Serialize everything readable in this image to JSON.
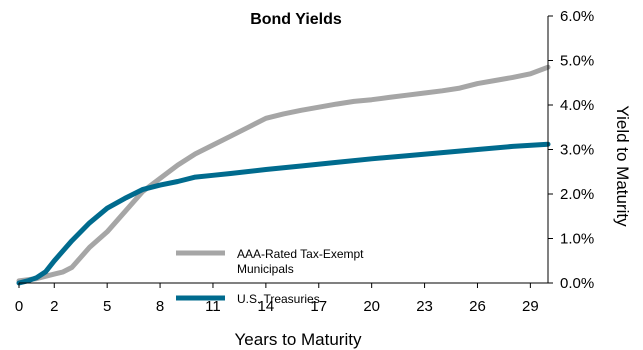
{
  "chart_data": {
    "type": "line",
    "title": "Bond Yields",
    "xlabel": "Years to Maturity",
    "ylabel": "Yield to Maturity",
    "xlim": [
      0,
      30
    ],
    "ylim": [
      0,
      6
    ],
    "x_ticks": [
      0,
      2,
      5,
      8,
      11,
      14,
      17,
      20,
      23,
      26,
      29
    ],
    "y_ticks": [
      "0.0%",
      "1.0%",
      "2.0%",
      "3.0%",
      "4.0%",
      "5.0%",
      "6.0%"
    ],
    "y_axis_side": "right",
    "grid": false,
    "legend_placement": "center",
    "series": [
      {
        "name": "AAA-Rated Tax-Exempt Municipals",
        "color": "#a6a6a6",
        "points": [
          [
            0,
            0.05
          ],
          [
            1,
            0.1
          ],
          [
            2,
            0.2
          ],
          [
            2.5,
            0.25
          ],
          [
            3,
            0.35
          ],
          [
            4,
            0.8
          ],
          [
            5,
            1.15
          ],
          [
            6,
            1.6
          ],
          [
            7,
            2.05
          ],
          [
            8,
            2.35
          ],
          [
            9,
            2.65
          ],
          [
            10,
            2.9
          ],
          [
            11,
            3.1
          ],
          [
            12,
            3.3
          ],
          [
            13,
            3.5
          ],
          [
            14,
            3.7
          ],
          [
            15,
            3.8
          ],
          [
            16,
            3.88
          ],
          [
            17,
            3.95
          ],
          [
            18,
            4.02
          ],
          [
            19,
            4.08
          ],
          [
            20,
            4.12
          ],
          [
            21,
            4.17
          ],
          [
            22,
            4.22
          ],
          [
            23,
            4.27
          ],
          [
            24,
            4.32
          ],
          [
            25,
            4.38
          ],
          [
            26,
            4.48
          ],
          [
            27,
            4.55
          ],
          [
            28,
            4.62
          ],
          [
            29,
            4.7
          ],
          [
            30,
            4.85
          ]
        ]
      },
      {
        "name": "U.S. Treasuries",
        "color": "#006b8e",
        "points": [
          [
            0,
            0.0
          ],
          [
            0.5,
            0.05
          ],
          [
            1,
            0.12
          ],
          [
            1.5,
            0.25
          ],
          [
            2,
            0.5
          ],
          [
            3,
            0.95
          ],
          [
            4,
            1.35
          ],
          [
            5,
            1.68
          ],
          [
            6,
            1.9
          ],
          [
            7,
            2.1
          ],
          [
            8,
            2.2
          ],
          [
            9,
            2.28
          ],
          [
            10,
            2.38
          ],
          [
            11,
            2.42
          ],
          [
            12,
            2.46
          ],
          [
            14,
            2.55
          ],
          [
            16,
            2.63
          ],
          [
            18,
            2.71
          ],
          [
            20,
            2.79
          ],
          [
            22,
            2.86
          ],
          [
            24,
            2.93
          ],
          [
            26,
            3.0
          ],
          [
            28,
            3.07
          ],
          [
            30,
            3.12
          ]
        ]
      }
    ]
  }
}
